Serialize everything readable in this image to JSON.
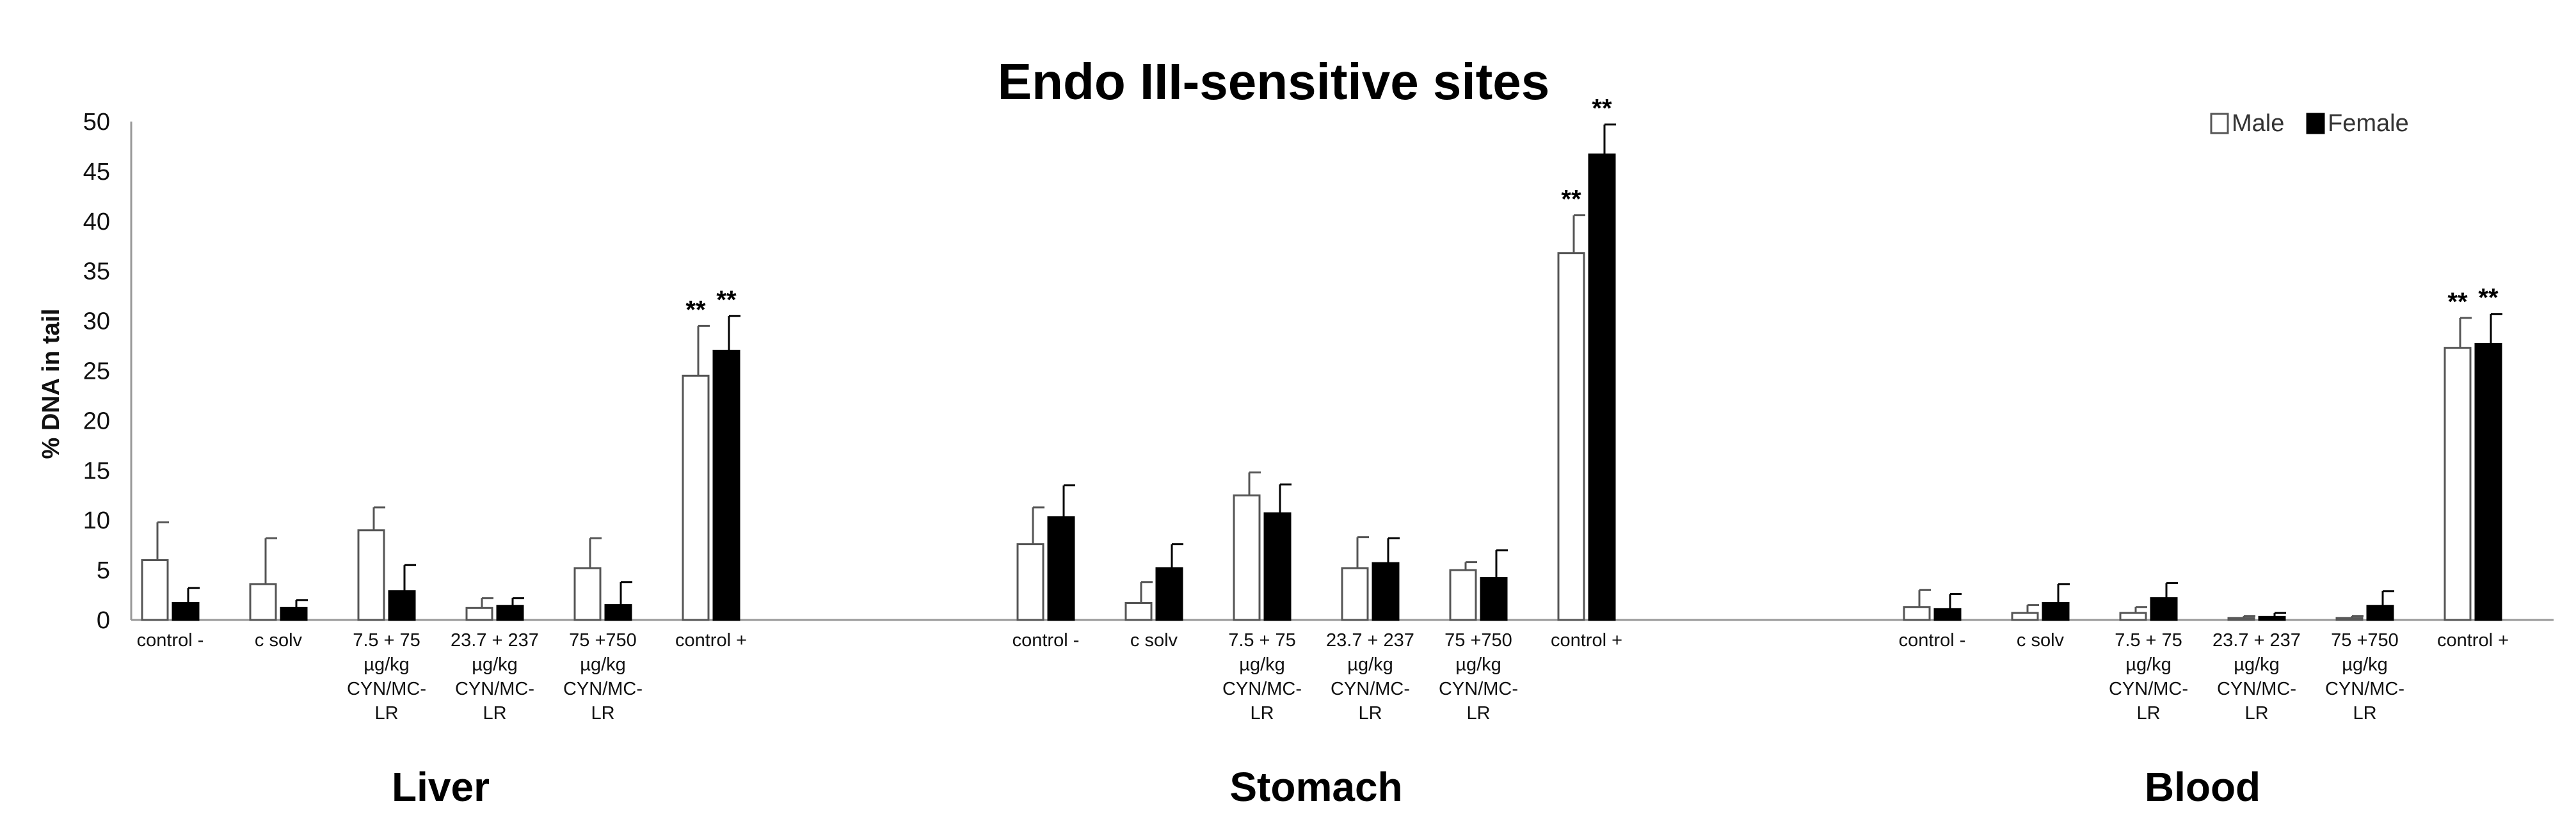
{
  "chart_data": {
    "type": "bar",
    "title": "Endo III-sensitive sites",
    "ylabel": "% DNA in tail",
    "ylim": [
      0,
      50
    ],
    "yticks": [
      0,
      5,
      10,
      15,
      20,
      25,
      30,
      35,
      40,
      45,
      50
    ],
    "grid": false,
    "legend": {
      "placement": "top-right"
    },
    "categories": [
      "control -",
      "c solv",
      "7.5 + 75 µg/kg CYN/MC-LR",
      "23.7 + 237 µg/kg CYN/MC-LR",
      "75 +750 µg/kg CYN/MC-LR",
      "control +"
    ],
    "series_meta": [
      {
        "name": "Male",
        "fill": "#ffffff",
        "stroke": "#555555"
      },
      {
        "name": "Female",
        "fill": "#000000",
        "stroke": "#000000"
      }
    ],
    "groups": [
      {
        "name": "Liver",
        "series": [
          {
            "name": "Male",
            "values": [
              6.0,
              3.6,
              9.0,
              1.2,
              5.2,
              24.5
            ],
            "errors": [
              3.8,
              4.6,
              2.3,
              1.0,
              3.0,
              5.0
            ],
            "significance": [
              "",
              "",
              "",
              "",
              "",
              "**"
            ]
          },
          {
            "name": "Female",
            "values": [
              1.7,
              1.2,
              2.9,
              1.4,
              1.5,
              27.0
            ],
            "errors": [
              1.5,
              0.8,
              2.6,
              0.8,
              2.3,
              3.5
            ],
            "significance": [
              "",
              "",
              "",
              "",
              "",
              "**"
            ]
          }
        ]
      },
      {
        "name": "Stomach",
        "series": [
          {
            "name": "Male",
            "values": [
              7.6,
              1.7,
              12.5,
              5.2,
              5.0,
              36.8
            ],
            "errors": [
              3.7,
              2.1,
              2.3,
              3.1,
              0.8,
              3.8
            ],
            "significance": [
              "",
              "",
              "",
              "",
              "",
              "**"
            ]
          },
          {
            "name": "Female",
            "values": [
              10.3,
              5.2,
              10.7,
              5.7,
              4.2,
              46.7
            ],
            "errors": [
              3.2,
              2.4,
              2.9,
              2.5,
              2.8,
              3.0
            ],
            "significance": [
              "",
              "",
              "",
              "",
              "",
              "**"
            ]
          }
        ]
      },
      {
        "name": "Blood",
        "series": [
          {
            "name": "Male",
            "values": [
              1.3,
              0.7,
              0.7,
              0.2,
              0.2,
              27.3
            ],
            "errors": [
              1.7,
              0.8,
              0.6,
              0.2,
              0.2,
              3.0
            ],
            "significance": [
              "",
              "",
              "",
              "",
              "",
              "**"
            ]
          },
          {
            "name": "Female",
            "values": [
              1.1,
              1.7,
              2.2,
              0.3,
              1.4,
              27.7
            ],
            "errors": [
              1.5,
              1.9,
              1.5,
              0.4,
              1.5,
              3.0
            ],
            "significance": [
              "",
              "",
              "",
              "",
              "",
              "**"
            ]
          }
        ]
      }
    ]
  }
}
